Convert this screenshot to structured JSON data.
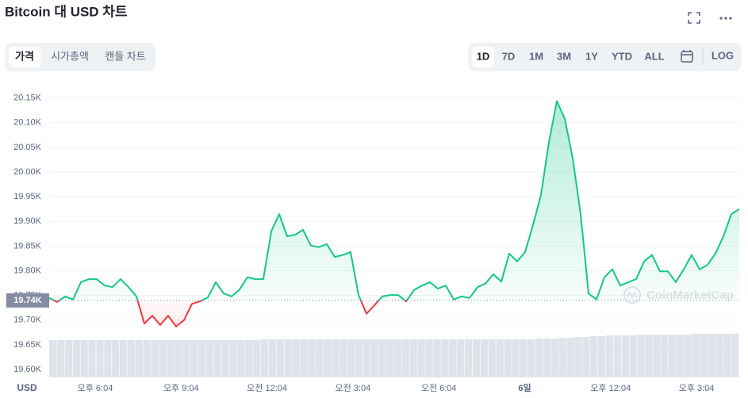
{
  "header": {
    "title": "Bitcoin 대 USD 차트"
  },
  "tabs": {
    "view": [
      "가격",
      "시가총액",
      "캔들 차트"
    ],
    "range": [
      "1D",
      "7D",
      "1M",
      "3M",
      "1Y",
      "YTD",
      "ALL"
    ],
    "scale": "LOG"
  },
  "chart_data": {
    "type": "line",
    "values": [
      19745,
      19737,
      19748,
      19742,
      19777,
      19783,
      19783,
      19770,
      19767,
      19783,
      19767,
      19748,
      19693,
      19709,
      19690,
      19709,
      19687,
      19700,
      19733,
      19738,
      19746,
      19777,
      19754,
      19748,
      19762,
      19787,
      19783,
      19783,
      19880,
      19915,
      19870,
      19873,
      19883,
      19851,
      19848,
      19854,
      19828,
      19832,
      19838,
      19751,
      19713,
      19730,
      19748,
      19751,
      19751,
      19738,
      19761,
      19770,
      19777,
      19764,
      19770,
      19742,
      19748,
      19745,
      19767,
      19774,
      19793,
      19778,
      19835,
      19819,
      19838,
      19893,
      19954,
      20060,
      20144,
      20108,
      20028,
      19915,
      19754,
      19742,
      19787,
      19803,
      19770,
      19777,
      19783,
      19819,
      19832,
      19799,
      19799,
      19777,
      19803,
      19832,
      19803,
      19812,
      19835,
      19870,
      19915,
      19925
    ],
    "volume": [
      47,
      47,
      47,
      47,
      47,
      47,
      47,
      47,
      47,
      47,
      47,
      47,
      47,
      47,
      47,
      47,
      47,
      47,
      47,
      47,
      47,
      47,
      47,
      47,
      47,
      47,
      47,
      48,
      48,
      48,
      48,
      48,
      48,
      48,
      48,
      48,
      48,
      48,
      48,
      48,
      48,
      48,
      48,
      48,
      48,
      48,
      48,
      48,
      48,
      48,
      48,
      48,
      48,
      48,
      48,
      48,
      48,
      48,
      48,
      48,
      48,
      48,
      49,
      49,
      49,
      50,
      50,
      51,
      51,
      52,
      52,
      53,
      53,
      53,
      53,
      54,
      54,
      54,
      54,
      54,
      54,
      54,
      55,
      55,
      55,
      55,
      55,
      55
    ],
    "up_color": "#16c784",
    "down_color": "#ea3943",
    "reference": 19740,
    "reference_label": "19.74K",
    "ylim": [
      19584,
      20172
    ],
    "yticks": [
      {
        "value": 19600,
        "label": "19.60K"
      },
      {
        "value": 19650,
        "label": "19.65K"
      },
      {
        "value": 19700,
        "label": "19.70K"
      },
      {
        "value": 19750,
        "label": "19.75K"
      },
      {
        "value": 19800,
        "label": "19.80K"
      },
      {
        "value": 19850,
        "label": "19.85K"
      },
      {
        "value": 19900,
        "label": "19.90K"
      },
      {
        "value": 19950,
        "label": "19.95K"
      },
      {
        "value": 20000,
        "label": "20.00K"
      },
      {
        "value": 20050,
        "label": "20.05K"
      },
      {
        "value": 20100,
        "label": "20.10K"
      },
      {
        "value": 20150,
        "label": "20.15K"
      }
    ],
    "grid": true,
    "x_unit": "USD",
    "x_labels": [
      "오후 6:04",
      "오후 9:04",
      "오전 12:04",
      "오전 3:04",
      "오전 6:04",
      "6일",
      "오후 12:04",
      "오후 3:04"
    ],
    "watermark": "CoinMarketCap"
  }
}
